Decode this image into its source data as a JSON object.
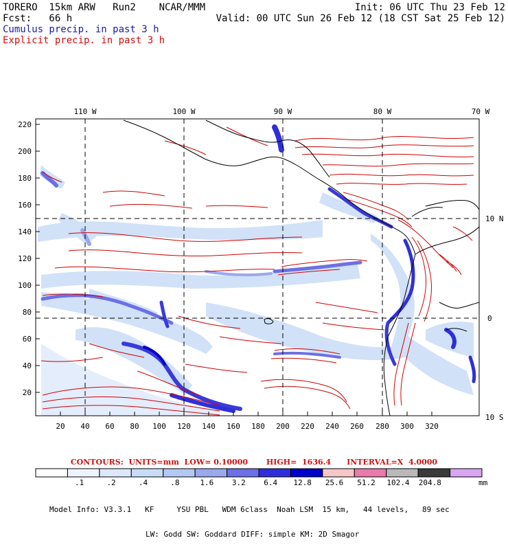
{
  "header": {
    "line1_left": "TORERO  15km ARW   Run2    NCAR/MMM",
    "line1_right": "Init: 06 UTC Thu 23 Feb 12",
    "line2_left": "Fcst:   66 h",
    "line2_right": "Valid: 00 UTC Sun 26 Feb 12 (18 CST Sat 25 Feb 12)",
    "field1": "Cumulus precip. in past 3 h",
    "field2": "Explicit precip. in past 3 h",
    "field1_color": "#1a1aa6",
    "field2_color": "#cc1010"
  },
  "map": {
    "top_labels": [
      "110 W",
      "100 W",
      "90 W",
      "80 W",
      "70 W"
    ],
    "right_labels": [
      "10 N",
      "0",
      "10 S"
    ],
    "y_ticks": [
      "220",
      "200",
      "180",
      "160",
      "140",
      "120",
      "100",
      "80",
      "60",
      "40",
      "20"
    ],
    "x_ticks": [
      "20",
      "40",
      "60",
      "80",
      "100",
      "120",
      "140",
      "160",
      "180",
      "200",
      "220",
      "240",
      "260",
      "280",
      "300",
      "320"
    ]
  },
  "contours": {
    "text": "CONTOURS:  UNITS=mm  LOW= 0.10000       HIGH=  1636.4      INTERVAL=X  4.0000"
  },
  "colorbar": {
    "labels": [
      ".1",
      ".2",
      ".4",
      ".8",
      "1.6",
      "3.2",
      "6.4",
      "12.8",
      "25.6",
      "51.2",
      "102.4",
      "204.8"
    ],
    "unit": "mm",
    "colors": [
      "#ffffff",
      "#eef4ff",
      "#dce8fb",
      "#c8dcf7",
      "#b3c8f2",
      "#9aa8ee",
      "#6b70e6",
      "#2f2fd9",
      "#0000c8",
      "#f6c7c8",
      "#ea7aa8",
      "#b9b9b9",
      "#3a3a3a",
      "#d7a6f4"
    ]
  },
  "model_info": {
    "line1": "Model Info: V3.3.1   KF     YSU PBL   WDM 6class  Noah LSM  15 km,   44 levels,   89 sec",
    "line2": "LW: Godd SW: Goddard DIFF: simple KM: 2D Smagor"
  }
}
